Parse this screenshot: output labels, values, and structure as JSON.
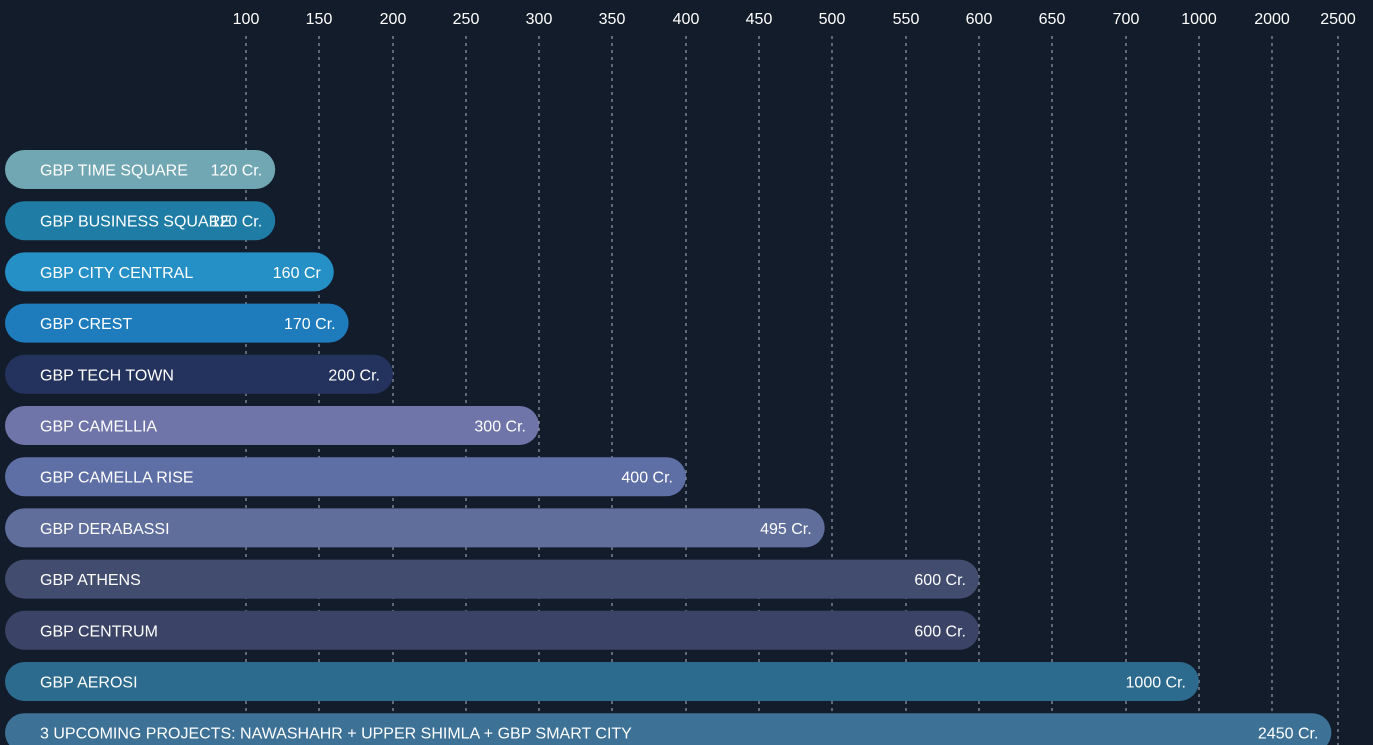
{
  "chart_data": {
    "type": "bar",
    "orientation": "horizontal",
    "x_ticks": [
      "100",
      "150",
      "200",
      "250",
      "300",
      "350",
      "400",
      "450",
      "500",
      "550",
      "600",
      "650",
      "700",
      "1000",
      "2000",
      "2500"
    ],
    "x_tick_values": [
      100,
      150,
      200,
      250,
      300,
      350,
      400,
      450,
      500,
      550,
      600,
      650,
      700,
      1000,
      2000,
      2500
    ],
    "grid": true,
    "bars": [
      {
        "label": "GBP TIME  SQUARE",
        "value": 120,
        "value_label": "120 Cr.",
        "color": "#70a7b3"
      },
      {
        "label": "GBP BUSINESS SQUARE",
        "value": 120,
        "value_label": "120 Cr.",
        "color": "#1e7ca5"
      },
      {
        "label": "GBP CITY CENTRAL",
        "value": 160,
        "value_label": "160 Cr",
        "color": "#2590c6"
      },
      {
        "label": "GBP CREST",
        "value": 170,
        "value_label": "170 Cr.",
        "color": "#1e7cbc"
      },
      {
        "label": "GBP TECH TOWN",
        "value": 200,
        "value_label": "200 Cr.",
        "color": "#24325e"
      },
      {
        "label": "GBP CAMELLIA",
        "value": 300,
        "value_label": "300 Cr.",
        "color": "#6f74a9"
      },
      {
        "label": "GBP CAMELLA RISE",
        "value": 400,
        "value_label": "400 Cr.",
        "color": "#5e6fa6"
      },
      {
        "label": "GBP DERABASSI",
        "value": 495,
        "value_label": "495 Cr.",
        "color": "#5f6e9b"
      },
      {
        "label": "GBP ATHENS",
        "value": 600,
        "value_label": "600 Cr.",
        "color": "#424c6e"
      },
      {
        "label": "GBP CENTRUM",
        "value": 600,
        "value_label": "600 Cr.",
        "color": "#3b4466"
      },
      {
        "label": "GBP AEROSI",
        "value": 1000,
        "value_label": "1000 Cr.",
        "color": "#2c6b8e"
      },
      {
        "label": "3 UPCOMING PROJECTS: NAWASHAHR + UPPER SHIMLA + GBP SMART CITY",
        "value": 2450,
        "value_label": "2450 Cr.",
        "color": "#3d7196"
      }
    ]
  }
}
